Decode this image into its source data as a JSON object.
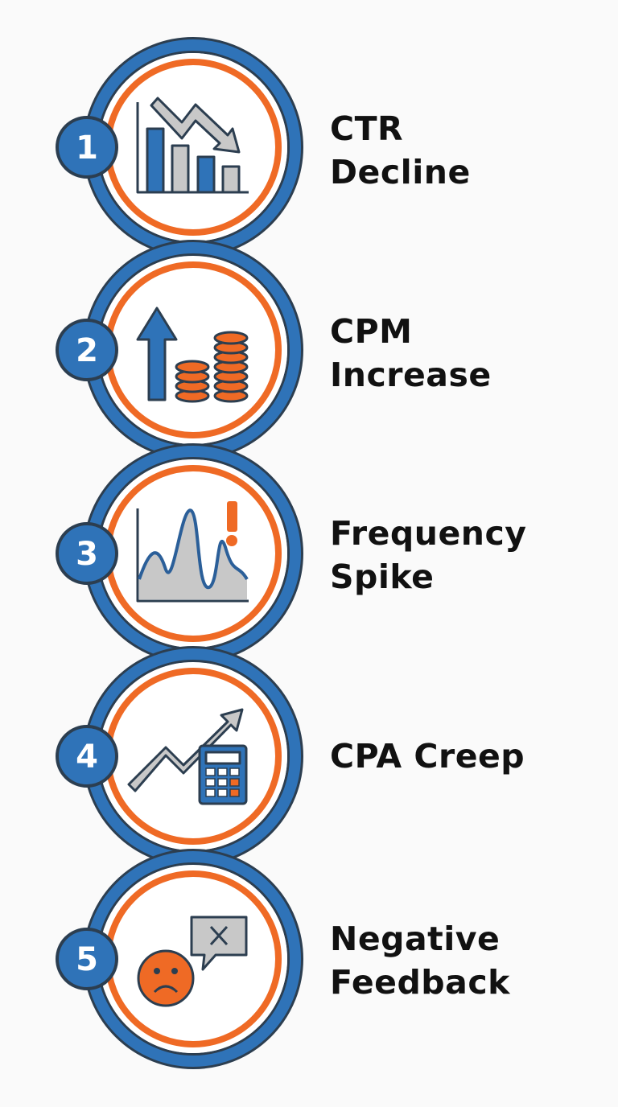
{
  "colors": {
    "blue": "#2f73b8",
    "orange": "#ef6a25",
    "outline": "#2c3e50",
    "gray": "#c8c8c8",
    "background": "#fafafa"
  },
  "steps": [
    {
      "number": "1",
      "title_lines": [
        "CTR",
        "Decline"
      ],
      "icon": "bar-chart-declining-arrow-icon"
    },
    {
      "number": "2",
      "title_lines": [
        "CPM",
        "Increase"
      ],
      "icon": "up-arrow-coin-stacks-icon"
    },
    {
      "number": "3",
      "title_lines": [
        "Frequency",
        "Spike"
      ],
      "icon": "spiking-wave-exclamation-icon"
    },
    {
      "number": "4",
      "title_lines": [
        "CPA Creep"
      ],
      "icon": "rising-arrow-calculator-icon"
    },
    {
      "number": "5",
      "title_lines": [
        "Negative",
        "Feedback"
      ],
      "icon": "sad-face-speech-bubble-x-icon"
    }
  ]
}
